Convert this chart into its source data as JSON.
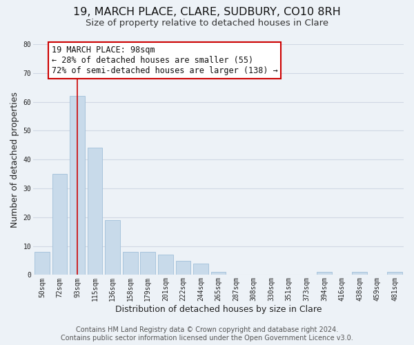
{
  "title": "19, MARCH PLACE, CLARE, SUDBURY, CO10 8RH",
  "subtitle": "Size of property relative to detached houses in Clare",
  "xlabel": "Distribution of detached houses by size in Clare",
  "ylabel": "Number of detached properties",
  "bar_labels": [
    "50sqm",
    "72sqm",
    "93sqm",
    "115sqm",
    "136sqm",
    "158sqm",
    "179sqm",
    "201sqm",
    "222sqm",
    "244sqm",
    "265sqm",
    "287sqm",
    "308sqm",
    "330sqm",
    "351sqm",
    "373sqm",
    "394sqm",
    "416sqm",
    "438sqm",
    "459sqm",
    "481sqm"
  ],
  "bar_values": [
    8,
    35,
    62,
    44,
    19,
    8,
    8,
    7,
    5,
    4,
    1,
    0,
    0,
    0,
    0,
    0,
    1,
    0,
    1,
    0,
    1
  ],
  "bar_color": "#c8daea",
  "bar_edge_color": "#a8c4dc",
  "grid_color": "#d0d8e4",
  "background_color": "#edf2f7",
  "vline_x_idx": 2,
  "vline_color": "#cc0000",
  "annotation_line1": "19 MARCH PLACE: 98sqm",
  "annotation_line2": "← 28% of detached houses are smaller (55)",
  "annotation_line3": "72% of semi-detached houses are larger (138) →",
  "annotation_box_color": "#ffffff",
  "annotation_box_edge": "#cc0000",
  "ylim": [
    0,
    80
  ],
  "yticks": [
    0,
    10,
    20,
    30,
    40,
    50,
    60,
    70,
    80
  ],
  "footer_line1": "Contains HM Land Registry data © Crown copyright and database right 2024.",
  "footer_line2": "Contains public sector information licensed under the Open Government Licence v3.0.",
  "title_fontsize": 11.5,
  "subtitle_fontsize": 9.5,
  "axis_label_fontsize": 9,
  "tick_fontsize": 7,
  "annotation_fontsize": 8.5,
  "footer_fontsize": 7
}
